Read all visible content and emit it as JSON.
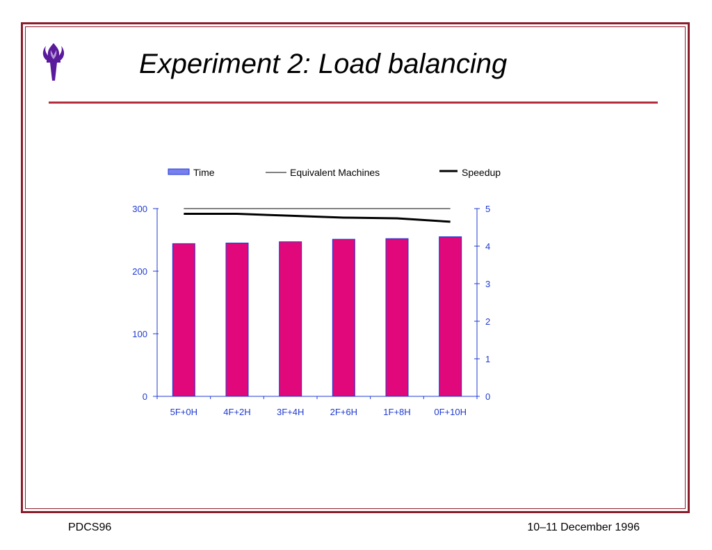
{
  "slide": {
    "title": "Experiment 2: Load balancing",
    "footer_left": "PDCS96",
    "footer_right": "10–11 December 1996",
    "logo_icon": "torch-icon",
    "accent_color": "#8b1c2b",
    "logo_color": "#5a1a9c"
  },
  "chart_data": {
    "type": "bar",
    "categories": [
      "5F+0H",
      "4F+2H",
      "3F+4H",
      "2F+6H",
      "1F+8H",
      "0F+10H"
    ],
    "series": [
      {
        "name": "Time",
        "kind": "bar",
        "axis": "left",
        "color": "#e0087a",
        "legend_color": "#7a7ff0",
        "values": [
          244,
          245,
          247,
          251,
          252,
          255
        ]
      },
      {
        "name": "Equivalent Machines",
        "kind": "line",
        "axis": "right",
        "color": "#000000",
        "values": [
          5,
          5,
          5,
          5,
          5,
          5
        ]
      },
      {
        "name": "Speedup",
        "kind": "line",
        "axis": "right",
        "color": "#000000",
        "values": [
          4.86,
          4.86,
          4.81,
          4.76,
          4.74,
          4.65
        ]
      }
    ],
    "y_left": {
      "ylim": [
        0,
        300
      ],
      "ticks": [
        "0",
        "100",
        "200",
        "300"
      ]
    },
    "y_right": {
      "ylim": [
        0,
        5
      ],
      "ticks": [
        "0",
        "1",
        "2",
        "3",
        "4",
        "5"
      ]
    },
    "legend_position": "top",
    "grid": false,
    "axis_color": "#1e3ad0"
  }
}
